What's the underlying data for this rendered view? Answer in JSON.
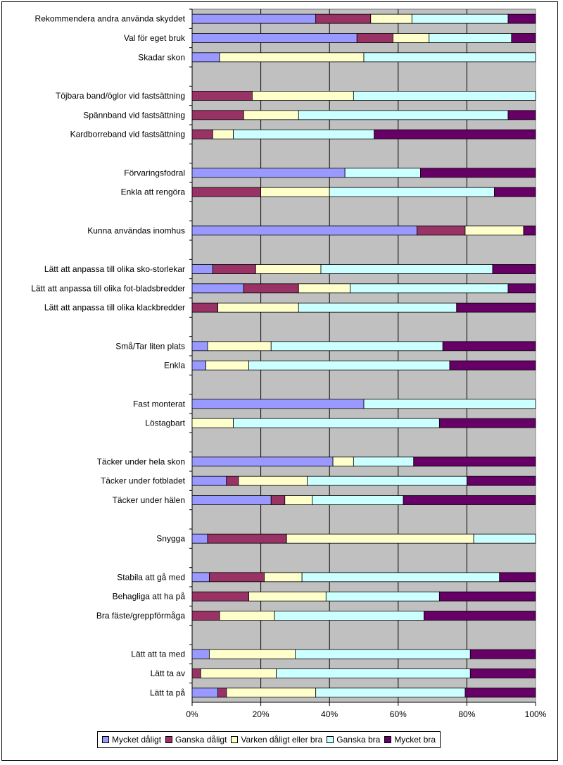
{
  "chart_data": {
    "type": "bar",
    "stacked": "percent",
    "orientation": "horizontal",
    "xlim": [
      0,
      100
    ],
    "xticks": [
      "0%",
      "20%",
      "40%",
      "60%",
      "80%",
      "100%"
    ],
    "gridlines": true,
    "legend_position": "bottom",
    "series": [
      {
        "name": "Mycket dåligt",
        "color": "#9999ff"
      },
      {
        "name": "Ganska dåligt",
        "color": "#993366"
      },
      {
        "name": "Varken dåligt eller bra",
        "color": "#ffffcc"
      },
      {
        "name": "Ganska bra",
        "color": "#ccffff"
      },
      {
        "name": "Mycket bra",
        "color": "#660066"
      }
    ],
    "categories": [
      {
        "label": "Rekommendera andra använda skyddet",
        "values": [
          36,
          16,
          12,
          28,
          8
        ]
      },
      {
        "label": "Val för eget bruk",
        "values": [
          48,
          10.5,
          10.5,
          24,
          7
        ]
      },
      {
        "label": "Skadar skon",
        "values": [
          8,
          0,
          42,
          50,
          0
        ]
      },
      {
        "label": "",
        "values": null
      },
      {
        "label": "Töjbara band/öglor vid fastsättning",
        "values": [
          0,
          17.5,
          29.5,
          53,
          0
        ]
      },
      {
        "label": "Spännband vid fastsättning",
        "values": [
          0,
          15,
          16,
          61,
          8
        ]
      },
      {
        "label": "Kardborreband vid fastsättning",
        "values": [
          0,
          6,
          6,
          41,
          47
        ]
      },
      {
        "label": "",
        "values": null
      },
      {
        "label": "Förvaringsfodral",
        "values": [
          44.5,
          0,
          0,
          22,
          33.5
        ]
      },
      {
        "label": "Enkla att rengöra",
        "values": [
          0,
          20,
          20,
          48,
          12
        ]
      },
      {
        "label": "",
        "values": null
      },
      {
        "label": "Kunna användas inomhus",
        "values": [
          65.5,
          14,
          17,
          0,
          3.5
        ]
      },
      {
        "label": "",
        "values": null
      },
      {
        "label": "Lätt att anpassa till olika sko-storlekar",
        "values": [
          6,
          12.5,
          19,
          50,
          12.5
        ]
      },
      {
        "label": "Lätt att anpassa till olika fot-bladsbredder",
        "values": [
          15,
          16,
          15,
          46,
          8
        ]
      },
      {
        "label": "Lätt att anpassa till olika klackbredder",
        "values": [
          0,
          7.5,
          23.5,
          46,
          23
        ]
      },
      {
        "label": "",
        "values": null
      },
      {
        "label": "Små/Tar liten plats",
        "values": [
          4.5,
          0,
          18.5,
          50,
          27
        ]
      },
      {
        "label": "Enkla",
        "values": [
          4,
          0,
          12.5,
          58.5,
          25
        ]
      },
      {
        "label": "",
        "values": null
      },
      {
        "label": "Fast monterat",
        "values": [
          50,
          0,
          0,
          50,
          0
        ]
      },
      {
        "label": "Löstagbart",
        "values": [
          0,
          0,
          12,
          60,
          28
        ]
      },
      {
        "label": "",
        "values": null
      },
      {
        "label": "Täcker under hela skon",
        "values": [
          41,
          0,
          6,
          17.5,
          35.5
        ]
      },
      {
        "label": "Täcker under fotbladet",
        "values": [
          10,
          3.5,
          20,
          46.5,
          20
        ]
      },
      {
        "label": "Täcker under hälen",
        "values": [
          23,
          4,
          8,
          26.5,
          38.5
        ]
      },
      {
        "label": "",
        "values": null
      },
      {
        "label": "Snygga",
        "values": [
          4.5,
          23,
          54.5,
          18,
          0
        ]
      },
      {
        "label": "",
        "values": null
      },
      {
        "label": "Stabila att gå med",
        "values": [
          5,
          16,
          11,
          57.5,
          10.5
        ]
      },
      {
        "label": "Behagliga att ha på",
        "values": [
          0,
          16.5,
          22.5,
          33,
          28
        ]
      },
      {
        "label": "Bra fäste/greppförmåga",
        "values": [
          0,
          8,
          16,
          43.5,
          32.5
        ]
      },
      {
        "label": "",
        "values": null
      },
      {
        "label": "Lätt att ta med",
        "values": [
          5,
          0,
          25,
          51,
          19
        ]
      },
      {
        "label": "Lätt ta av",
        "values": [
          0,
          2.5,
          22,
          56.5,
          19
        ]
      },
      {
        "label": "Lätt ta på",
        "values": [
          7.5,
          2.5,
          26,
          43.5,
          20.5
        ]
      }
    ]
  }
}
